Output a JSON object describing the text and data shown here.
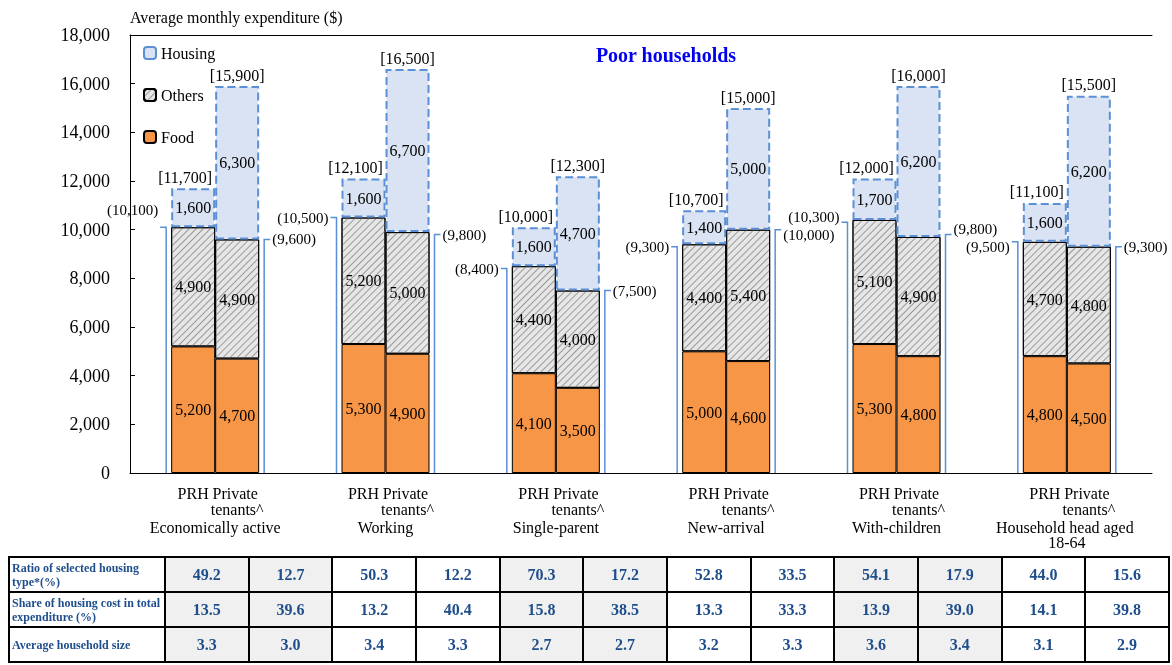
{
  "chart_data": {
    "type": "bar",
    "stacked": true,
    "ylabel": "Average monthly expenditure ($)",
    "categories": [
      "PRH",
      "Private tenants^",
      "PRH",
      "Private tenants^",
      "PRH",
      "Private tenants^",
      "PRH",
      "Private tenants^",
      "PRH",
      "Private tenants^",
      "PRH",
      "Private tenants^"
    ],
    "series": [
      {
        "name": "Food",
        "color": "#f79646",
        "values": [
          5200,
          4700,
          5300,
          4900,
          4100,
          3500,
          5000,
          4600,
          5300,
          4800,
          4800,
          4500
        ],
        "value_labels": [
          "5,200",
          "4,700",
          "5,300",
          "4,900",
          "4,100",
          "3,500",
          "5,000",
          "4,600",
          "5,300",
          "4,800",
          "4,800",
          "4,500"
        ]
      },
      {
        "name": "Others",
        "color": "#e6e6e6",
        "values": [
          4900,
          4900,
          5200,
          5000,
          4400,
          4000,
          4400,
          5400,
          5100,
          4900,
          4700,
          4800
        ],
        "value_labels": [
          "4,900",
          "4,900",
          "5,200",
          "5,000",
          "4,400",
          "4,000",
          "4,400",
          "5,400",
          "5,100",
          "4,900",
          "4,700",
          "4,800"
        ]
      },
      {
        "name": "Housing",
        "color": "#dae3f3",
        "line_style": "dashed",
        "values": [
          1600,
          6300,
          1600,
          6700,
          1600,
          4700,
          1400,
          5000,
          1700,
          6200,
          1600,
          6200
        ],
        "value_labels": [
          "1,600",
          "6,300",
          "1,600",
          "6,700",
          "1,600",
          "4,700",
          "1,400",
          "5,000",
          "1,700",
          "6,200",
          "1,600",
          "6,200"
        ]
      }
    ],
    "ylim": [
      0,
      18000
    ],
    "yticks": [
      0,
      {
        "value": 2000,
        "label": "2,000"
      },
      {
        "value": 4000,
        "label": "4,000"
      },
      {
        "value": 6000,
        "label": "6,000"
      },
      {
        "value": 8000,
        "label": "8,000"
      },
      {
        "value": 10000,
        "label": "10,000"
      },
      {
        "value": 12000,
        "label": "12,000"
      },
      {
        "value": 14000,
        "label": "14,000"
      },
      {
        "value": 16000,
        "label": "16,000"
      },
      {
        "value": 18000,
        "label": "18,000"
      }
    ],
    "grid": false,
    "legend": "top left",
    "annotations": [
      "Economically active",
      "Working",
      "Single-parent",
      "New-arrival",
      "With-children",
      "Household head aged 18-64",
      "Poor households",
      "Ratio of selected housing type*(%)",
      "49.2",
      "12.7",
      "50.3",
      "12.2",
      "70.3",
      "17.2",
      "52.8",
      "33.5",
      "54.1",
      "17.9",
      "44.0",
      "15.6",
      "Share of housing cost in total expenditure (%)",
      "13.5",
      "39.6",
      "13.2",
      "40.4",
      "15.8",
      "38.5",
      "13.3",
      "33.3",
      "13.9",
      "39.0",
      "14.1",
      "39.8",
      "Average household size",
      "3.3",
      "3.0",
      "3.4",
      "3.3",
      "2.7",
      "2.7",
      "3.2",
      "3.3",
      "3.6",
      "3.4",
      "3.1",
      "2.9",
      "[11,700]",
      "[15,900]",
      "[12,100]",
      "[16,500]",
      "[10,000]",
      "[12,300]",
      "[10,700]",
      "[15,000]",
      "[12,000]",
      "[16,000]",
      "[11,100]",
      "[15,500]",
      "(10,100)",
      "(9,600)",
      "(10,500)",
      "(9,800)",
      "(8,400)",
      "(7,500)",
      "(9,300)",
      "(10,000)",
      "(10,300)",
      "(9,800)",
      "(9,500)",
      "(9,300)"
    ]
  }
}
